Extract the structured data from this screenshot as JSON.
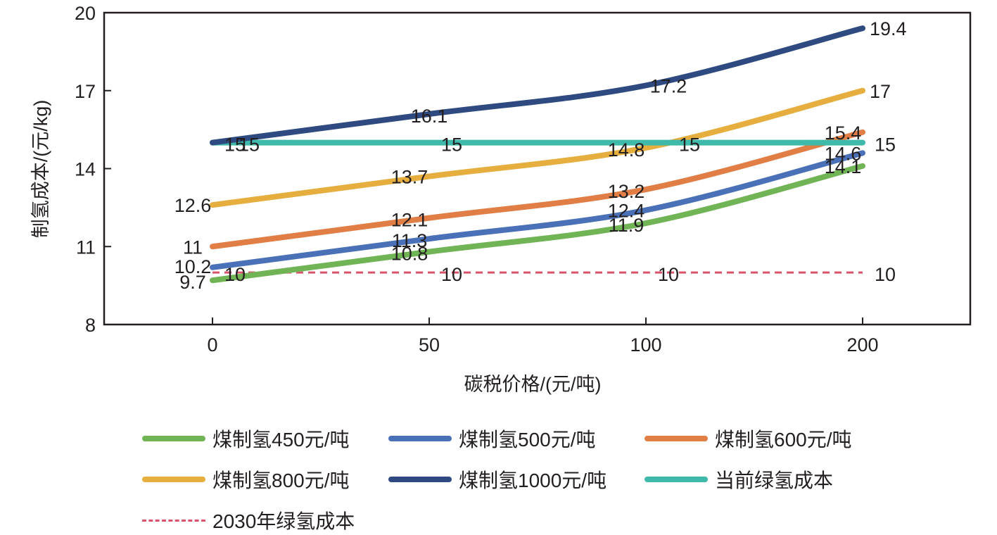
{
  "chart_data": {
    "type": "line",
    "title": "",
    "xlabel": "碳税价格/(元/吨)",
    "ylabel": "制氢成本/(元/kg)",
    "categories": [
      "0",
      "50",
      "100",
      "200"
    ],
    "ylim": [
      8,
      20
    ],
    "yticks": [
      8,
      11,
      14,
      17,
      20
    ],
    "grid": false,
    "legend_position": "bottom",
    "series": [
      {
        "name": "煤制氢450元/吨",
        "color": "#70b456",
        "style": "solid",
        "values": [
          9.7,
          10.8,
          11.9,
          14.1
        ]
      },
      {
        "name": "煤制氢500元/吨",
        "color": "#4a71b8",
        "style": "solid",
        "values": [
          10.2,
          11.3,
          12.4,
          14.6
        ]
      },
      {
        "name": "煤制氢600元/吨",
        "color": "#e17e45",
        "style": "solid",
        "values": [
          11,
          12.1,
          13.2,
          15.4
        ]
      },
      {
        "name": "煤制氢800元/吨",
        "color": "#e6ae3f",
        "style": "solid",
        "values": [
          12.6,
          13.7,
          14.8,
          17
        ]
      },
      {
        "name": "煤制氢1000元/吨",
        "color": "#2f4a80",
        "style": "solid",
        "values": [
          15,
          16.1,
          17.2,
          19.4
        ]
      },
      {
        "name": "当前绿氢成本",
        "color": "#3fb9a9",
        "style": "solid",
        "values": [
          15,
          15,
          15,
          15
        ]
      },
      {
        "name": "2030年绿氢成本",
        "color": "#d9536a",
        "style": "dashed",
        "values": [
          10,
          10,
          10,
          10
        ]
      }
    ]
  }
}
